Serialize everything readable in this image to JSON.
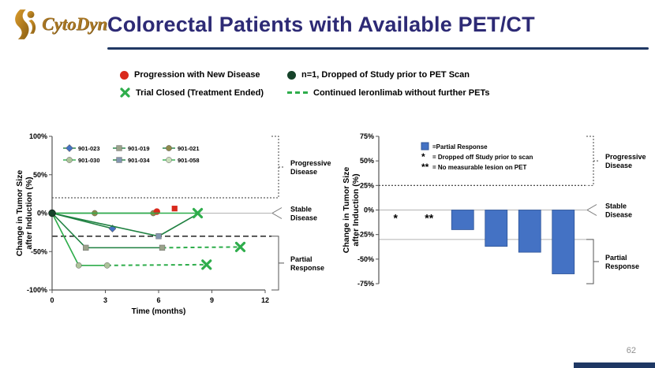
{
  "slide": {
    "title": "Colorectal Patients with Available PET/CT",
    "logo_text": "CytoDyn",
    "page_number": "62",
    "title_color": "#2D2A75",
    "accent_color": "#203864"
  },
  "legend": {
    "colors": {
      "progression": "#D9291C",
      "dropped": "#16432A",
      "trial_closed": "#2EAD4B",
      "continued": "#2EAD4B"
    },
    "items": [
      {
        "icon": "red-circle",
        "label": "Progression with New Disease"
      },
      {
        "icon": "dark-green-circle",
        "label": "n=1, Dropped of Study prior to PET Scan"
      },
      {
        "icon": "green-x",
        "label": "Trial Closed (Treatment Ended)"
      },
      {
        "icon": "green-dashed-line",
        "label": "Continued leronlimab without further PETs"
      }
    ]
  },
  "chart_data": [
    {
      "type": "line",
      "xlabel": "Time (months)",
      "ylabel": "Change in Tumor Size after Induction (%)",
      "ylabel_lines": [
        "Change in Tumor Size",
        "after Induction (%)"
      ],
      "xlim": [
        0,
        12
      ],
      "ylim": [
        -100,
        100
      ],
      "xticks": [
        0,
        3,
        6,
        9,
        12
      ],
      "yticks": [
        {
          "v": 100,
          "label": "100%"
        },
        {
          "v": 50,
          "label": "50%"
        },
        {
          "v": 0,
          "label": "0%"
        },
        {
          "v": -50,
          "label": "-50%"
        },
        {
          "v": -100,
          "label": "-100%"
        }
      ],
      "thresholds": {
        "progressive_disease": 20,
        "stable_disease": 0,
        "partial_response": -30
      },
      "right_labels": [
        "Progressive Disease",
        "Stable Disease",
        "Partial Response"
      ],
      "origin_marker": {
        "x": 0,
        "y": 0,
        "color": "#16432A",
        "meaning": "n=1, Dropped of Study prior to PET Scan"
      },
      "trial_closed_color": "#2EAD4B",
      "progression_color": "#D9291C",
      "series": [
        {
          "name": "901-023",
          "line_color": "#1E8040",
          "marker": "diamond",
          "marker_color": "#4472C4",
          "points": [
            [
              0,
              0
            ],
            [
              3.4,
              -20
            ]
          ],
          "marker_points": [
            [
              3.4,
              -20
            ]
          ]
        },
        {
          "name": "901-019",
          "line_color": "#1E8040",
          "marker": "square",
          "marker_color": "#9BA28B",
          "points": [
            [
              0,
              0
            ],
            [
              1.9,
              -45
            ],
            [
              6.2,
              -45
            ]
          ],
          "marker_points": [
            [
              1.9,
              -45
            ],
            [
              6.2,
              -45
            ]
          ],
          "dashed_to": [
            10.6,
            -44
          ],
          "trial_closed_at": [
            10.6,
            -44
          ]
        },
        {
          "name": "901-021",
          "line_color": "#1E8040",
          "marker": "circle",
          "marker_color": "#8F8A4B",
          "points": [
            [
              0,
              0
            ],
            [
              2.4,
              0
            ],
            [
              5.7,
              0
            ]
          ],
          "marker_points": [
            [
              2.4,
              0
            ],
            [
              5.7,
              0
            ]
          ],
          "progression_markers": [
            {
              "shape": "circle",
              "x": 5.9,
              "y": 2
            },
            {
              "shape": "square",
              "x": 6.9,
              "y": 6
            }
          ]
        },
        {
          "name": "901-030",
          "line_color": "#2EAD4B",
          "marker": "circle",
          "marker_color": "#AEC49B",
          "points": [
            [
              0,
              0
            ],
            [
              1.5,
              -68
            ],
            [
              3.1,
              -68
            ]
          ],
          "marker_points": [
            [
              1.5,
              -68
            ],
            [
              3.1,
              -68
            ]
          ],
          "dashed_to": [
            8.7,
            -67
          ],
          "trial_closed_at": [
            8.7,
            -67
          ]
        },
        {
          "name": "901-034",
          "line_color": "#1E8040",
          "marker": "square",
          "marker_color": "#8496B0",
          "points": [
            [
              0,
              0
            ],
            [
              6.0,
              -30
            ],
            [
              8.2,
              -1
            ]
          ],
          "marker_points": [
            [
              6.0,
              -30
            ]
          ]
        },
        {
          "name": "901-058",
          "line_color": "#2EAD4B",
          "marker": "circle",
          "marker_color": "#C9DDBA",
          "points": [
            [
              0,
              0
            ],
            [
              8.2,
              0
            ]
          ],
          "marker_points": [],
          "trial_closed_at": [
            8.2,
            0
          ]
        }
      ]
    },
    {
      "type": "bar",
      "ylabel": "Change in Tumor Size after Induction (%)",
      "ylabel_lines": [
        "Change in Tumor Size",
        "after Induction (%)"
      ],
      "ylim": [
        -75,
        75
      ],
      "yticks": [
        {
          "v": 75,
          "label": "75%"
        },
        {
          "v": 50,
          "label": "50%"
        },
        {
          "v": 25,
          "label": "25%"
        },
        {
          "v": 0,
          "label": "0%"
        },
        {
          "v": -25,
          "label": "-25%"
        },
        {
          "v": -50,
          "label": "-50%"
        },
        {
          "v": -75,
          "label": "-75%"
        }
      ],
      "bar_color": "#4472C4",
      "bar_border": "#2F5597",
      "thresholds": {
        "progressive_disease": 25,
        "stable_disease": 0,
        "partial_response": -30
      },
      "right_labels": [
        "Progressive Disease",
        "Stable Disease",
        "Partial Response"
      ],
      "bars": [
        {
          "label": "*",
          "value": null
        },
        {
          "label": "**",
          "value": null
        },
        {
          "label": "",
          "value": -20
        },
        {
          "label": "",
          "value": -37
        },
        {
          "label": "",
          "value": -43
        },
        {
          "label": "",
          "value": -65
        }
      ],
      "legend": [
        {
          "swatch": "square",
          "label": "=Partial Response"
        },
        {
          "swatch": "*",
          "label": "= Dropped off Study prior to scan"
        },
        {
          "swatch": "**",
          "label": "= No measurable lesion on PET"
        }
      ]
    }
  ]
}
